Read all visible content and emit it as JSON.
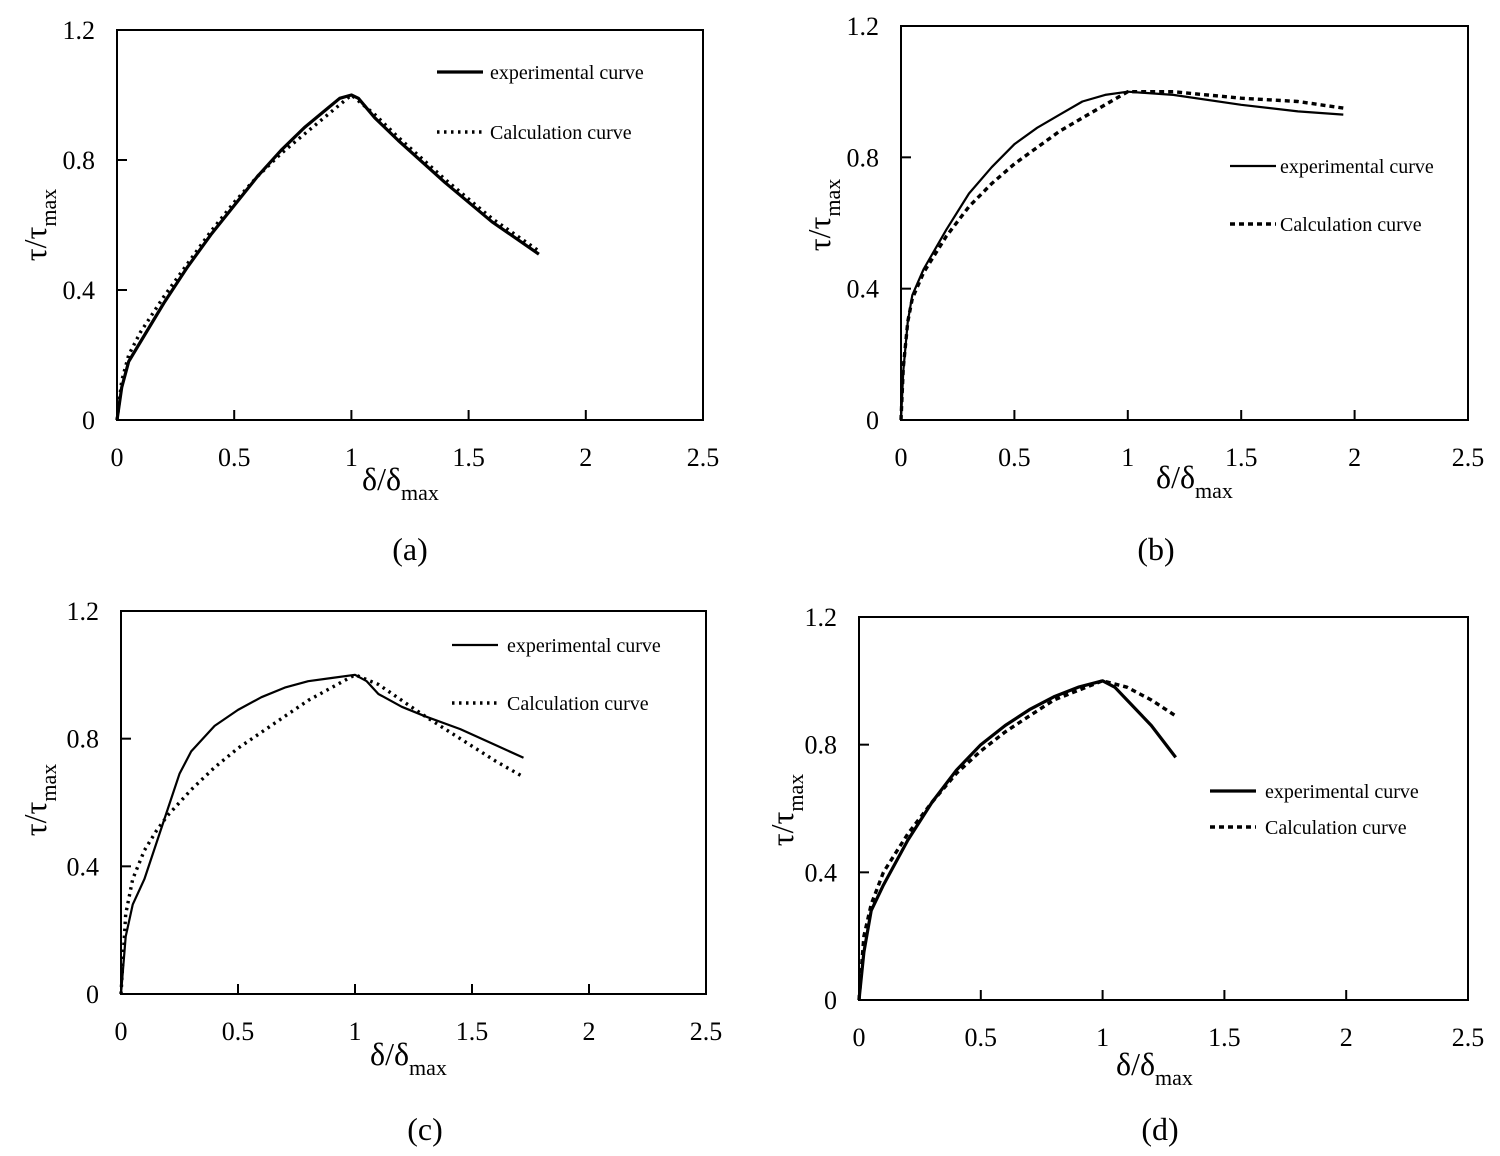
{
  "figure": {
    "xlabel_main": "δ/δ",
    "xlabel_sub": "max",
    "ylabel_main": "τ/τ",
    "ylabel_sub": "max"
  },
  "chart_data": [
    {
      "type": "line",
      "caption": "(a)",
      "xlim": [
        0,
        2.5
      ],
      "ylim": [
        0,
        1.2
      ],
      "x_ticks": [
        "0",
        "0.5",
        "1",
        "1.5",
        "2",
        "2.5"
      ],
      "y_ticks": [
        "0",
        "0.4",
        "0.8",
        "1.2"
      ],
      "legend_position": "top-right",
      "series": [
        {
          "name": "experimental curve",
          "style": "solid-thick",
          "points": [
            [
              0,
              0
            ],
            [
              0.02,
              0.1
            ],
            [
              0.05,
              0.18
            ],
            [
              0.1,
              0.24
            ],
            [
              0.2,
              0.36
            ],
            [
              0.3,
              0.47
            ],
            [
              0.4,
              0.57
            ],
            [
              0.5,
              0.66
            ],
            [
              0.6,
              0.75
            ],
            [
              0.7,
              0.83
            ],
            [
              0.8,
              0.9
            ],
            [
              0.9,
              0.96
            ],
            [
              0.95,
              0.99
            ],
            [
              1.0,
              1.0
            ],
            [
              1.03,
              0.99
            ],
            [
              1.1,
              0.93
            ],
            [
              1.2,
              0.86
            ],
            [
              1.4,
              0.73
            ],
            [
              1.6,
              0.61
            ],
            [
              1.8,
              0.51
            ]
          ]
        },
        {
          "name": "Calculation curve",
          "style": "dotted",
          "points": [
            [
              0,
              0
            ],
            [
              0.02,
              0.12
            ],
            [
              0.05,
              0.2
            ],
            [
              0.1,
              0.27
            ],
            [
              0.2,
              0.38
            ],
            [
              0.3,
              0.48
            ],
            [
              0.4,
              0.58
            ],
            [
              0.5,
              0.67
            ],
            [
              0.6,
              0.75
            ],
            [
              0.7,
              0.82
            ],
            [
              0.8,
              0.88
            ],
            [
              0.9,
              0.94
            ],
            [
              1.0,
              1.0
            ],
            [
              1.1,
              0.94
            ],
            [
              1.2,
              0.87
            ],
            [
              1.4,
              0.74
            ],
            [
              1.6,
              0.62
            ],
            [
              1.8,
              0.52
            ]
          ]
        }
      ]
    },
    {
      "type": "line",
      "caption": "(b)",
      "xlim": [
        0,
        2.5
      ],
      "ylim": [
        0,
        1.2
      ],
      "x_ticks": [
        "0",
        "0.5",
        "1",
        "1.5",
        "2",
        "2.5"
      ],
      "y_ticks": [
        "0",
        "0.4",
        "0.8",
        "1.2"
      ],
      "legend_position": "center-right",
      "series": [
        {
          "name": "experimental curve",
          "style": "solid",
          "points": [
            [
              0,
              0
            ],
            [
              0.01,
              0.15
            ],
            [
              0.03,
              0.3
            ],
            [
              0.05,
              0.38
            ],
            [
              0.1,
              0.46
            ],
            [
              0.2,
              0.58
            ],
            [
              0.3,
              0.69
            ],
            [
              0.4,
              0.77
            ],
            [
              0.5,
              0.84
            ],
            [
              0.6,
              0.89
            ],
            [
              0.7,
              0.93
            ],
            [
              0.8,
              0.97
            ],
            [
              0.9,
              0.99
            ],
            [
              1.0,
              1.0
            ],
            [
              1.2,
              0.99
            ],
            [
              1.5,
              0.96
            ],
            [
              1.75,
              0.94
            ],
            [
              1.95,
              0.93
            ]
          ]
        },
        {
          "name": "Calculation curve",
          "style": "dashed",
          "points": [
            [
              0,
              0
            ],
            [
              0.01,
              0.16
            ],
            [
              0.03,
              0.3
            ],
            [
              0.05,
              0.37
            ],
            [
              0.1,
              0.45
            ],
            [
              0.2,
              0.56
            ],
            [
              0.3,
              0.65
            ],
            [
              0.4,
              0.72
            ],
            [
              0.5,
              0.78
            ],
            [
              0.6,
              0.83
            ],
            [
              0.7,
              0.88
            ],
            [
              0.8,
              0.92
            ],
            [
              0.9,
              0.96
            ],
            [
              1.0,
              1.0
            ],
            [
              1.2,
              1.0
            ],
            [
              1.5,
              0.98
            ],
            [
              1.75,
              0.97
            ],
            [
              1.95,
              0.95
            ]
          ]
        }
      ]
    },
    {
      "type": "line",
      "caption": "(c)",
      "xlim": [
        0,
        2.5
      ],
      "ylim": [
        0,
        1.2
      ],
      "x_ticks": [
        "0",
        "0.5",
        "1",
        "1.5",
        "2",
        "2.5"
      ],
      "y_ticks": [
        "0",
        "0.4",
        "0.8",
        "1.2"
      ],
      "legend_position": "top-right",
      "series": [
        {
          "name": "experimental curve",
          "style": "solid",
          "points": [
            [
              0,
              0
            ],
            [
              0.02,
              0.18
            ],
            [
              0.05,
              0.28
            ],
            [
              0.1,
              0.36
            ],
            [
              0.15,
              0.47
            ],
            [
              0.2,
              0.58
            ],
            [
              0.25,
              0.69
            ],
            [
              0.3,
              0.76
            ],
            [
              0.4,
              0.84
            ],
            [
              0.5,
              0.89
            ],
            [
              0.6,
              0.93
            ],
            [
              0.7,
              0.96
            ],
            [
              0.8,
              0.98
            ],
            [
              0.9,
              0.99
            ],
            [
              1.0,
              1.0
            ],
            [
              1.05,
              0.98
            ],
            [
              1.1,
              0.94
            ],
            [
              1.2,
              0.9
            ],
            [
              1.3,
              0.87
            ],
            [
              1.45,
              0.83
            ],
            [
              1.6,
              0.78
            ],
            [
              1.72,
              0.74
            ]
          ]
        },
        {
          "name": "Calculation curve",
          "style": "dotted",
          "points": [
            [
              0,
              0
            ],
            [
              0.02,
              0.25
            ],
            [
              0.05,
              0.36
            ],
            [
              0.1,
              0.45
            ],
            [
              0.15,
              0.51
            ],
            [
              0.2,
              0.56
            ],
            [
              0.3,
              0.64
            ],
            [
              0.4,
              0.71
            ],
            [
              0.5,
              0.77
            ],
            [
              0.6,
              0.82
            ],
            [
              0.7,
              0.87
            ],
            [
              0.8,
              0.92
            ],
            [
              0.9,
              0.96
            ],
            [
              1.0,
              1.0
            ],
            [
              1.1,
              0.97
            ],
            [
              1.2,
              0.92
            ],
            [
              1.3,
              0.87
            ],
            [
              1.45,
              0.8
            ],
            [
              1.6,
              0.73
            ],
            [
              1.72,
              0.68
            ]
          ]
        }
      ]
    },
    {
      "type": "line",
      "caption": "(d)",
      "xlim": [
        0,
        2.5
      ],
      "ylim": [
        0,
        1.2
      ],
      "x_ticks": [
        "0",
        "0.5",
        "1",
        "1.5",
        "2",
        "2.5"
      ],
      "y_ticks": [
        "0",
        "0.4",
        "0.8",
        "1.2"
      ],
      "legend_position": "center-right",
      "series": [
        {
          "name": "experimental curve",
          "style": "solid-thick",
          "points": [
            [
              0,
              0
            ],
            [
              0.02,
              0.15
            ],
            [
              0.05,
              0.28
            ],
            [
              0.1,
              0.36
            ],
            [
              0.2,
              0.5
            ],
            [
              0.3,
              0.62
            ],
            [
              0.4,
              0.72
            ],
            [
              0.5,
              0.8
            ],
            [
              0.6,
              0.86
            ],
            [
              0.7,
              0.91
            ],
            [
              0.8,
              0.95
            ],
            [
              0.9,
              0.98
            ],
            [
              1.0,
              1.0
            ],
            [
              1.05,
              0.98
            ],
            [
              1.1,
              0.94
            ],
            [
              1.2,
              0.86
            ],
            [
              1.3,
              0.76
            ]
          ]
        },
        {
          "name": "Calculation curve",
          "style": "dashed",
          "points": [
            [
              0,
              0
            ],
            [
              0.02,
              0.2
            ],
            [
              0.05,
              0.3
            ],
            [
              0.1,
              0.4
            ],
            [
              0.2,
              0.52
            ],
            [
              0.3,
              0.62
            ],
            [
              0.4,
              0.71
            ],
            [
              0.5,
              0.78
            ],
            [
              0.6,
              0.84
            ],
            [
              0.7,
              0.89
            ],
            [
              0.8,
              0.94
            ],
            [
              0.9,
              0.97
            ],
            [
              1.0,
              1.0
            ],
            [
              1.1,
              0.98
            ],
            [
              1.2,
              0.94
            ],
            [
              1.3,
              0.89
            ]
          ]
        }
      ]
    }
  ]
}
